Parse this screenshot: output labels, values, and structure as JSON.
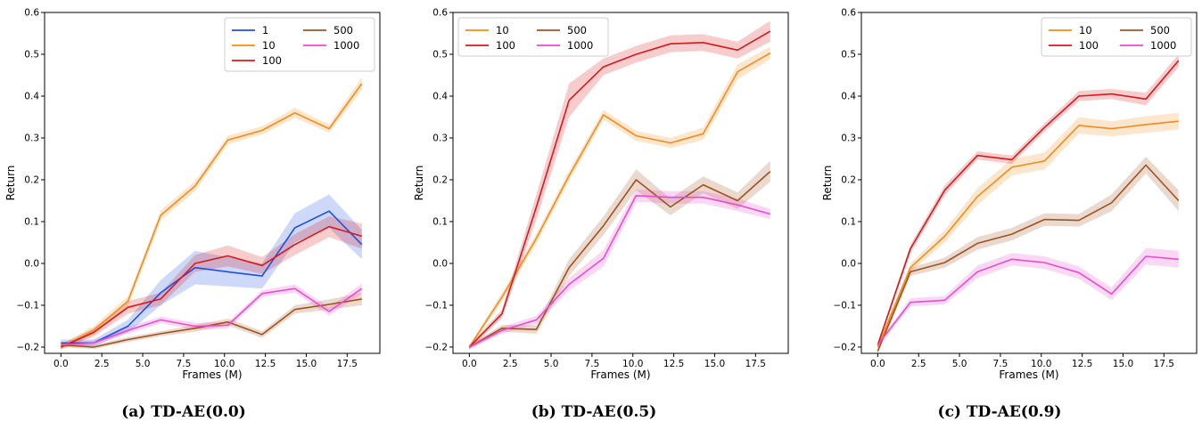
{
  "chart_data": [
    {
      "type": "line",
      "caption": "(a) TD-AE(0.0)",
      "xlabel": "Frames (M)",
      "ylabel": "Return",
      "xlim": [
        -1.0,
        19.5
      ],
      "ylim": [
        -0.215,
        0.6
      ],
      "xticks": [
        0.0,
        2.5,
        5.0,
        7.5,
        10.0,
        12.5,
        15.0,
        17.5
      ],
      "xtick_labels": [
        "0.0",
        "2.5",
        "5.0",
        "7.5",
        "10.0",
        "12.5",
        "15.0",
        "17.5"
      ],
      "yticks": [
        -0.2,
        -0.1,
        0.0,
        0.1,
        0.2,
        0.3,
        0.4,
        0.5,
        0.6
      ],
      "ytick_labels": [
        "−0.2",
        "−0.1",
        "0.0",
        "0.1",
        "0.2",
        "0.3",
        "0.4",
        "0.5",
        "0.6"
      ],
      "grid": false,
      "legend": {
        "position": "top-right",
        "columns": 2
      },
      "x": [
        0.0,
        2.0,
        4.1,
        6.1,
        8.2,
        10.2,
        12.3,
        14.3,
        16.4,
        18.4
      ],
      "series": [
        {
          "name": "1",
          "color": "#1f4fe0",
          "values": [
            -0.19,
            -0.19,
            -0.15,
            -0.07,
            -0.01,
            -0.02,
            -0.03,
            0.085,
            0.125,
            0.045
          ],
          "band": [
            0.008,
            0.008,
            0.015,
            0.03,
            0.04,
            0.035,
            0.03,
            0.035,
            0.04,
            0.035
          ]
        },
        {
          "name": "10",
          "color": "#f28c1a",
          "values": [
            -0.2,
            -0.16,
            -0.09,
            0.115,
            0.185,
            0.295,
            0.318,
            0.36,
            0.322,
            0.43
          ],
          "band": [
            0.006,
            0.01,
            0.012,
            0.012,
            0.012,
            0.01,
            0.01,
            0.012,
            0.01,
            0.015
          ]
        },
        {
          "name": "100",
          "color": "#d7191c",
          "values": [
            -0.2,
            -0.165,
            -0.105,
            -0.085,
            0.0,
            0.018,
            -0.005,
            0.045,
            0.088,
            0.065
          ],
          "band": [
            0.006,
            0.01,
            0.015,
            0.015,
            0.02,
            0.025,
            0.02,
            0.025,
            0.025,
            0.03
          ]
        },
        {
          "name": "500",
          "color": "#a0521e",
          "values": [
            -0.195,
            -0.2,
            -0.182,
            -0.168,
            -0.155,
            -0.14,
            -0.17,
            -0.11,
            -0.098,
            -0.085
          ],
          "band": [
            0.005,
            0.005,
            0.006,
            0.006,
            0.008,
            0.008,
            0.008,
            0.01,
            0.012,
            0.015
          ]
        },
        {
          "name": "1000",
          "color": "#e94ccf",
          "values": [
            -0.195,
            -0.19,
            -0.16,
            -0.135,
            -0.15,
            -0.148,
            -0.072,
            -0.06,
            -0.115,
            -0.06
          ],
          "band": [
            0.005,
            0.006,
            0.008,
            0.008,
            0.008,
            0.008,
            0.008,
            0.01,
            0.01,
            0.012
          ]
        }
      ]
    },
    {
      "type": "line",
      "caption": "(b) TD-AE(0.5)",
      "xlabel": "Frames (M)",
      "ylabel": "Return",
      "xlim": [
        -1.0,
        19.5
      ],
      "ylim": [
        -0.215,
        0.6
      ],
      "xticks": [
        0.0,
        2.5,
        5.0,
        7.5,
        10.0,
        12.5,
        15.0,
        17.5
      ],
      "xtick_labels": [
        "0.0",
        "2.5",
        "5.0",
        "7.5",
        "10.0",
        "12.5",
        "15.0",
        "17.5"
      ],
      "yticks": [
        -0.2,
        -0.1,
        0.0,
        0.1,
        0.2,
        0.3,
        0.4,
        0.5,
        0.6
      ],
      "ytick_labels": [
        "−0.2",
        "−0.1",
        "0.0",
        "0.1",
        "0.2",
        "0.3",
        "0.4",
        "0.5",
        "0.6"
      ],
      "grid": false,
      "legend": {
        "position": "top-left",
        "columns": 2
      },
      "x": [
        0.0,
        2.0,
        4.1,
        6.1,
        8.2,
        10.2,
        12.3,
        14.3,
        16.4,
        18.4
      ],
      "series": [
        {
          "name": "10",
          "color": "#f28c1a",
          "values": [
            -0.2,
            -0.08,
            0.06,
            0.21,
            0.355,
            0.305,
            0.288,
            0.31,
            0.458,
            0.503
          ],
          "band": [
            0.005,
            0.01,
            0.012,
            0.012,
            0.012,
            0.012,
            0.012,
            0.015,
            0.018,
            0.015
          ]
        },
        {
          "name": "100",
          "color": "#d7191c",
          "values": [
            -0.2,
            -0.12,
            0.135,
            0.39,
            0.47,
            0.5,
            0.525,
            0.528,
            0.51,
            0.555
          ],
          "band": [
            0.005,
            0.01,
            0.03,
            0.04,
            0.02,
            0.02,
            0.02,
            0.02,
            0.02,
            0.025
          ]
        },
        {
          "name": "500",
          "color": "#a0521e",
          "values": [
            -0.2,
            -0.155,
            -0.158,
            -0.01,
            0.09,
            0.2,
            0.135,
            0.188,
            0.15,
            0.22
          ],
          "band": [
            0.005,
            0.008,
            0.01,
            0.02,
            0.022,
            0.025,
            0.02,
            0.02,
            0.02,
            0.025
          ]
        },
        {
          "name": "1000",
          "color": "#e94ccf",
          "values": [
            -0.2,
            -0.16,
            -0.135,
            -0.05,
            0.012,
            0.162,
            0.158,
            0.158,
            0.14,
            0.118
          ],
          "band": [
            0.005,
            0.008,
            0.01,
            0.015,
            0.02,
            0.015,
            0.015,
            0.015,
            0.015,
            0.012
          ]
        }
      ]
    },
    {
      "type": "line",
      "caption": "(c) TD-AE(0.9)",
      "xlabel": "Frames (M)",
      "ylabel": "Return",
      "xlim": [
        -1.0,
        19.5
      ],
      "ylim": [
        -0.215,
        0.6
      ],
      "xticks": [
        0.0,
        2.5,
        5.0,
        7.5,
        10.0,
        12.5,
        15.0,
        17.5
      ],
      "xtick_labels": [
        "0.0",
        "2.5",
        "5.0",
        "7.5",
        "10.0",
        "12.5",
        "15.0",
        "17.5"
      ],
      "yticks": [
        -0.2,
        -0.1,
        0.0,
        0.1,
        0.2,
        0.3,
        0.4,
        0.5,
        0.6
      ],
      "ytick_labels": [
        "−0.2",
        "−0.1",
        "0.0",
        "0.1",
        "0.2",
        "0.3",
        "0.4",
        "0.5",
        "0.6"
      ],
      "grid": false,
      "legend": {
        "position": "top-right",
        "columns": 2
      },
      "x": [
        0.0,
        2.0,
        4.1,
        6.1,
        8.2,
        10.2,
        12.3,
        14.3,
        16.4,
        18.4
      ],
      "series": [
        {
          "name": "10",
          "color": "#f28c1a",
          "values": [
            -0.2,
            -0.01,
            0.065,
            0.16,
            0.23,
            0.245,
            0.33,
            0.322,
            0.332,
            0.34
          ],
          "band": [
            0.005,
            0.01,
            0.015,
            0.02,
            0.02,
            0.02,
            0.02,
            0.018,
            0.02,
            0.02
          ]
        },
        {
          "name": "100",
          "color": "#d7191c",
          "values": [
            -0.195,
            0.035,
            0.175,
            0.258,
            0.248,
            0.325,
            0.4,
            0.405,
            0.393,
            0.485
          ],
          "band": [
            0.005,
            0.01,
            0.012,
            0.01,
            0.01,
            0.01,
            0.012,
            0.012,
            0.015,
            0.015
          ]
        },
        {
          "name": "500",
          "color": "#a0521e",
          "values": [
            -0.21,
            -0.02,
            0.002,
            0.048,
            0.07,
            0.105,
            0.103,
            0.145,
            0.235,
            0.15
          ],
          "band": [
            0.005,
            0.01,
            0.012,
            0.015,
            0.015,
            0.015,
            0.015,
            0.02,
            0.02,
            0.025
          ]
        },
        {
          "name": "1000",
          "color": "#e94ccf",
          "values": [
            -0.195,
            -0.093,
            -0.088,
            -0.02,
            0.01,
            0.002,
            -0.022,
            -0.073,
            0.017,
            0.01
          ],
          "band": [
            0.005,
            0.01,
            0.01,
            0.015,
            0.015,
            0.015,
            0.015,
            0.015,
            0.02,
            0.02
          ]
        }
      ]
    }
  ]
}
